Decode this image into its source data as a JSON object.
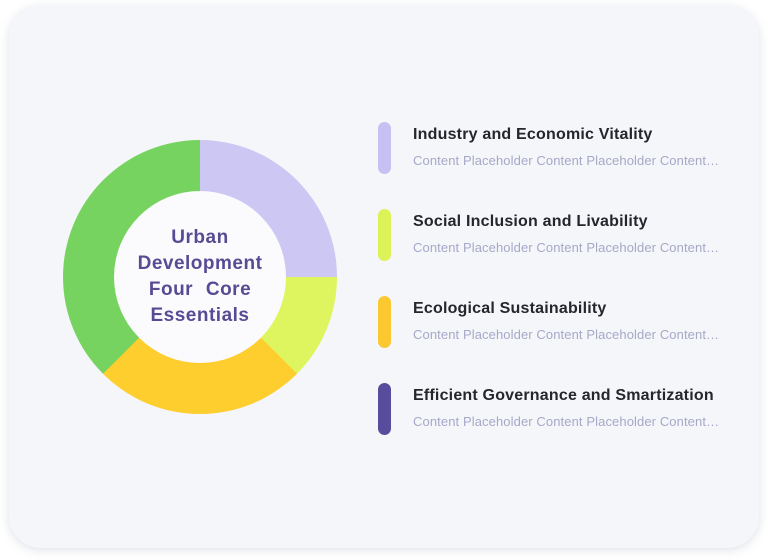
{
  "card": {
    "background": "#f5f6f9"
  },
  "donut": {
    "center_label": {
      "lines": [
        "Urban",
        "Development",
        "Four Core",
        "Essentials"
      ]
    },
    "center_text_color": "#574c94",
    "hole_color": "#fbfbfd",
    "slices": [
      {
        "name": "industry-and-economic-vitality",
        "color": "#cdc7f3",
        "start_deg": 0,
        "end_deg": 90,
        "percent": 25
      },
      {
        "name": "social-inclusion-and-livability",
        "color": "#def55f",
        "start_deg": 90,
        "end_deg": 135,
        "percent": 12.5
      },
      {
        "name": "ecological-sustainability",
        "color": "#fecd2e",
        "start_deg": 135,
        "end_deg": 225,
        "percent": 25
      },
      {
        "name": "efficient-governance-and-smartization",
        "color": "#77d35f",
        "start_deg": 225,
        "end_deg": 360,
        "percent": 37.5
      }
    ]
  },
  "legend": {
    "items": [
      {
        "title": "Industry and Economic Vitality",
        "description": "Content Placeholder Content Placeholder Content…",
        "color": "#c7c0f2"
      },
      {
        "title": "Social Inclusion and Livability",
        "description": "Content Placeholder Content Placeholder Content…",
        "color": "#dcf256"
      },
      {
        "title": "Ecological Sustainability",
        "description": "Content Placeholder Content Placeholder Content…",
        "color": "#fcc830"
      },
      {
        "title": "Efficient Governance and Smartization",
        "description": "Content Placeholder Content Placeholder Content…",
        "color": "#594c9c"
      }
    ]
  }
}
